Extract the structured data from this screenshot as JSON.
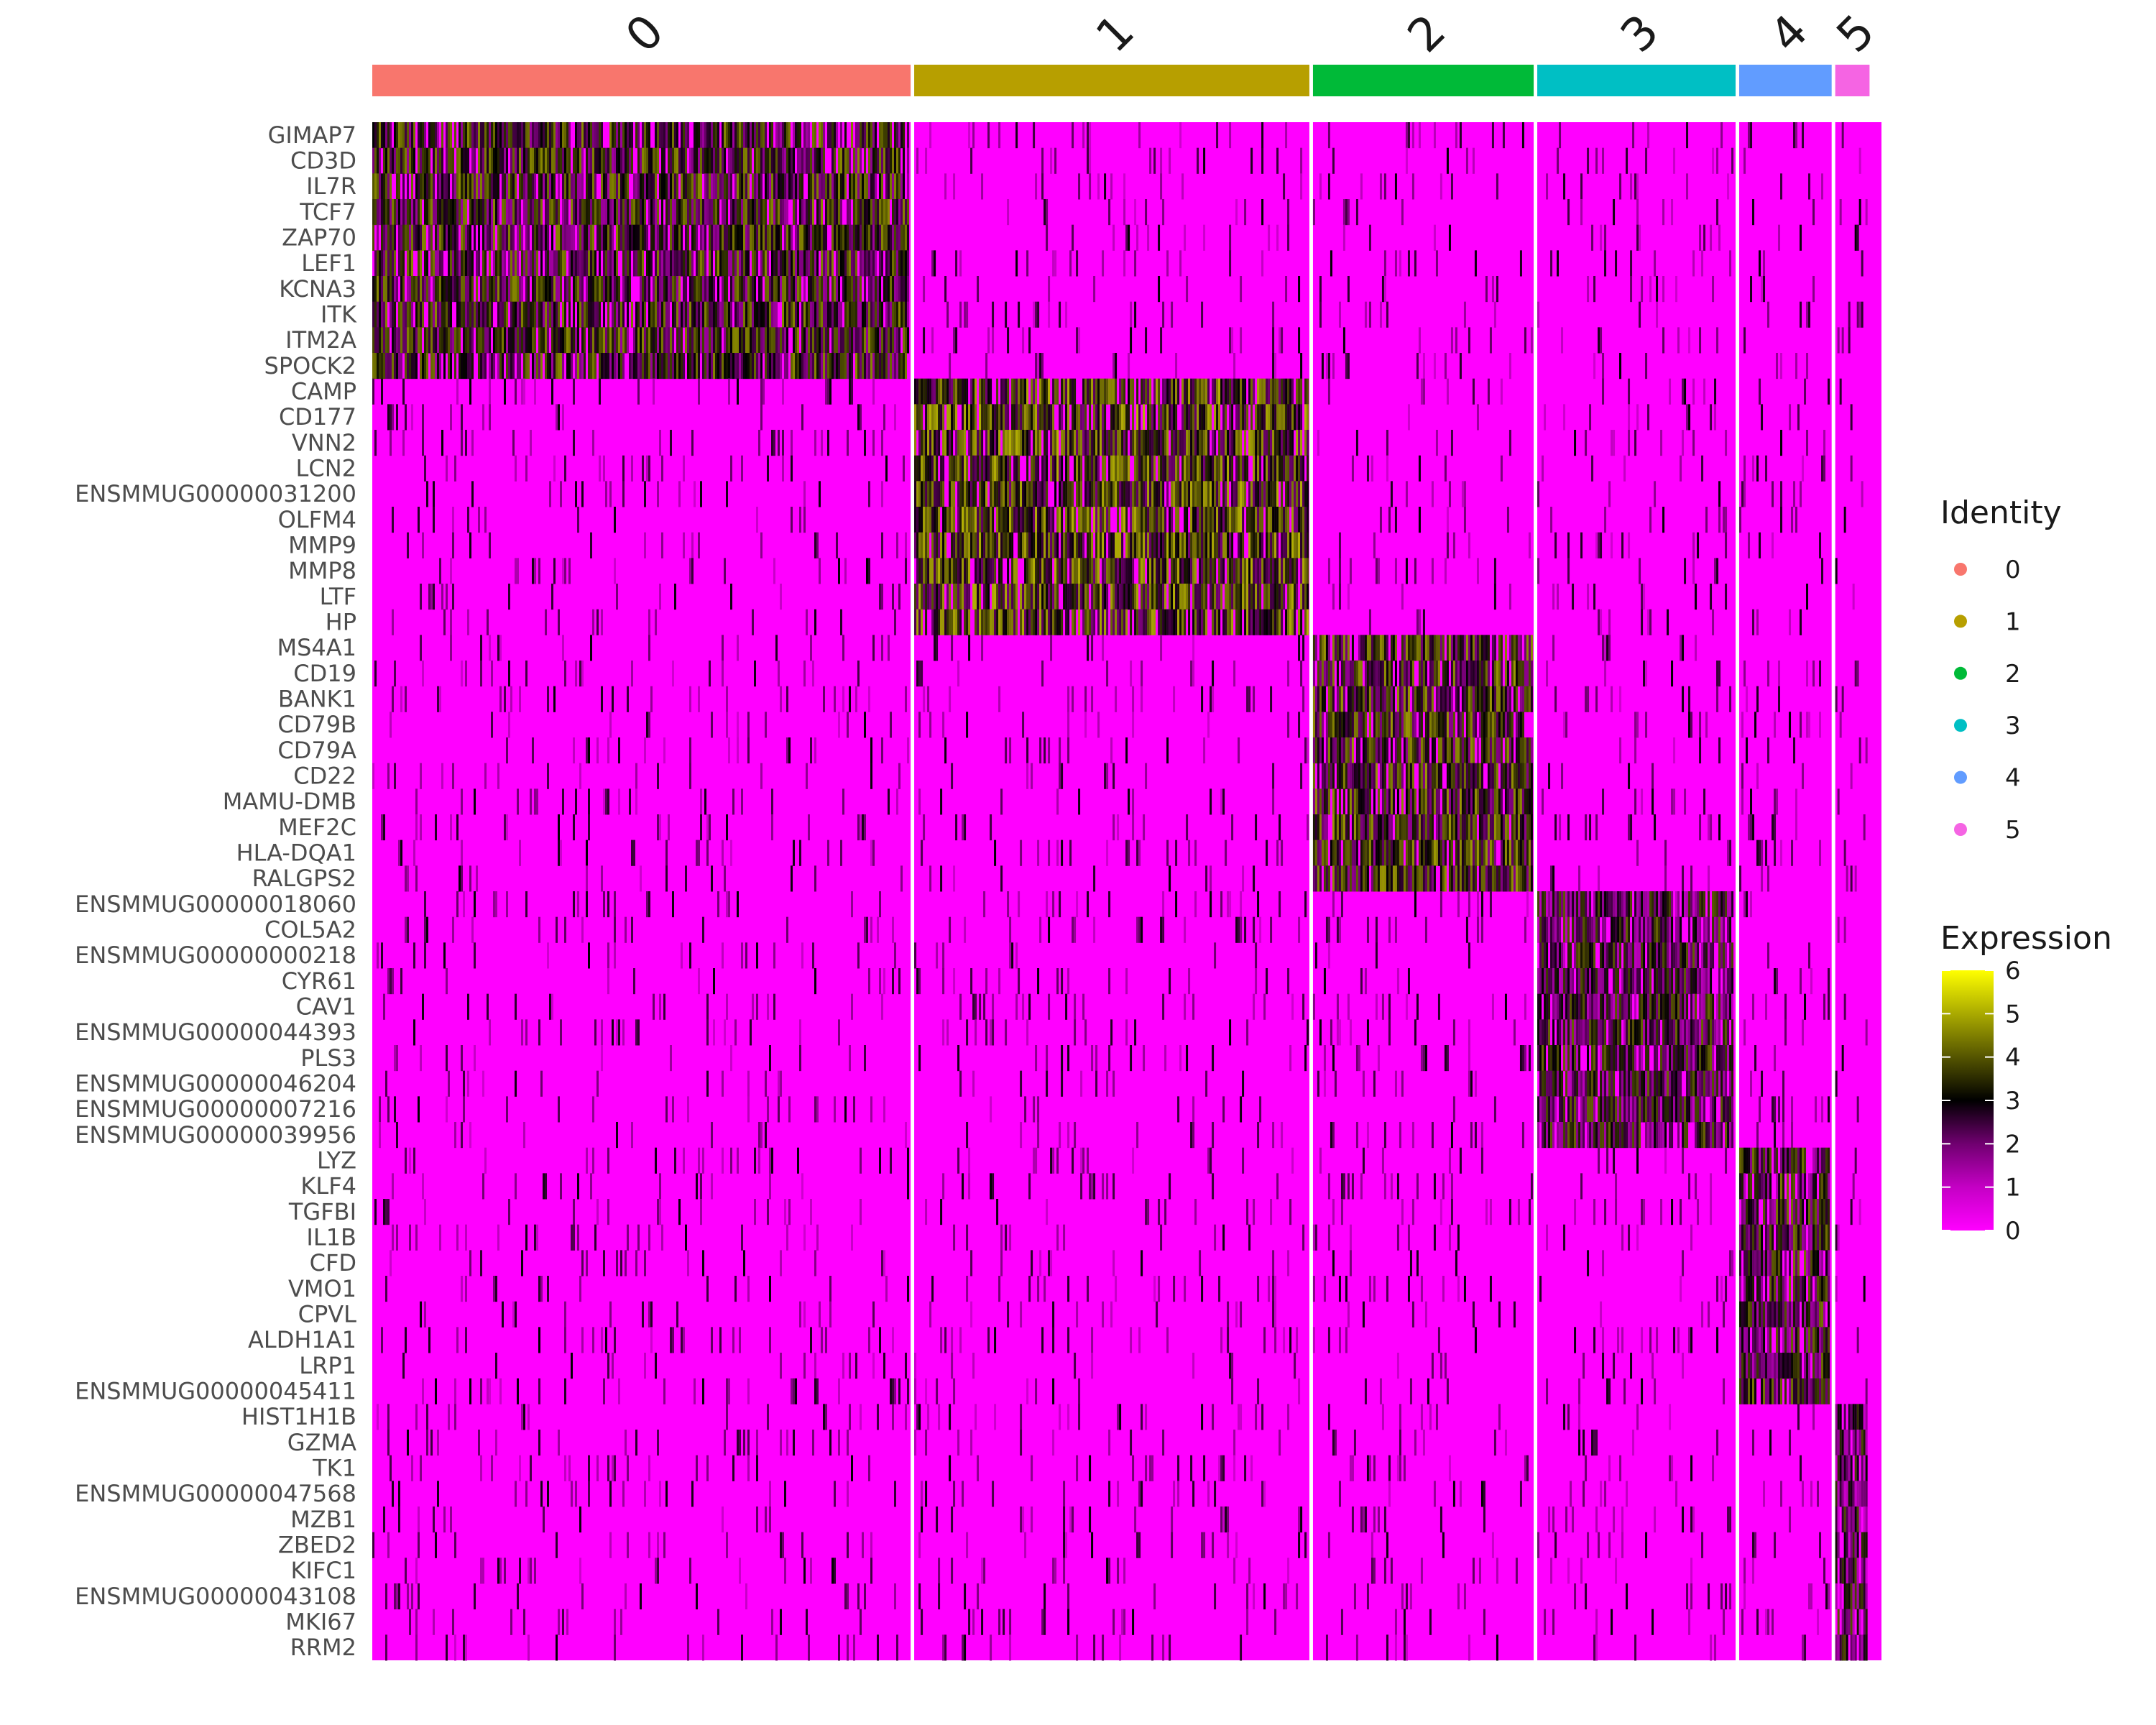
{
  "chart_data": {
    "type": "heatmap",
    "title": "",
    "xlabel": "",
    "ylabel": "",
    "clusters": [
      {
        "name": "0",
        "color": "#F8766D",
        "cell_fraction": 0.361
      },
      {
        "name": "1",
        "color": "#B79F00",
        "cell_fraction": 0.265
      },
      {
        "name": "2",
        "color": "#00BA38",
        "cell_fraction": 0.148
      },
      {
        "name": "3",
        "color": "#00BFC4",
        "cell_fraction": 0.133
      },
      {
        "name": "4",
        "color": "#619CFF",
        "cell_fraction": 0.062
      },
      {
        "name": "5",
        "color": "#F564E3",
        "cell_fraction": 0.023
      }
    ],
    "genes": [
      "GIMAP7",
      "CD3D",
      "IL7R",
      "TCF7",
      "ZAP70",
      "LEF1",
      "KCNA3",
      "ITK",
      "ITM2A",
      "SPOCK2",
      "CAMP",
      "CD177",
      "VNN2",
      "LCN2",
      "ENSMMUG00000031200",
      "OLFM4",
      "MMP9",
      "MMP8",
      "LTF",
      "HP",
      "MS4A1",
      "CD19",
      "BANK1",
      "CD79B",
      "CD79A",
      "CD22",
      "MAMU-DMB",
      "MEF2C",
      "HLA-DQA1",
      "RALGPS2",
      "ENSMMUG00000018060",
      "COL5A2",
      "ENSMMUG00000000218",
      "CYR61",
      "CAV1",
      "ENSMMUG00000044393",
      "PLS3",
      "ENSMMUG00000046204",
      "ENSMMUG00000007216",
      "ENSMMUG00000039956",
      "LYZ",
      "KLF4",
      "TGFBI",
      "IL1B",
      "CFD",
      "VMO1",
      "CPVL",
      "ALDH1A1",
      "LRP1",
      "ENSMMUG00000045411",
      "HIST1H1B",
      "GZMA",
      "TK1",
      "ENSMMUG00000047568",
      "MZB1",
      "ZBED2",
      "KIFC1",
      "ENSMMUG00000043108",
      "MKI67",
      "RRM2"
    ],
    "marker_block_size": 10,
    "mean_expression_in_own_cluster": [
      3.0,
      3.5,
      3.2,
      2.6,
      2.8,
      2.4
    ],
    "mean_expression_elsewhere": 0.15,
    "color_scale": {
      "name": "Expression",
      "min": 0,
      "max": 6,
      "ticks": [
        "0",
        "1",
        "2",
        "3",
        "4",
        "5",
        "6"
      ],
      "stops": [
        {
          "value": 0,
          "color": "#FF00FF"
        },
        {
          "value": 1,
          "color": "#C400C4"
        },
        {
          "value": 2,
          "color": "#700070"
        },
        {
          "value": 3,
          "color": "#000000"
        },
        {
          "value": 4,
          "color": "#555500"
        },
        {
          "value": 5,
          "color": "#AAAA00"
        },
        {
          "value": 6,
          "color": "#FFFF00"
        }
      ]
    },
    "legend": {
      "identity_title": "Identity",
      "expression_title": "Expression",
      "position": "right"
    }
  }
}
